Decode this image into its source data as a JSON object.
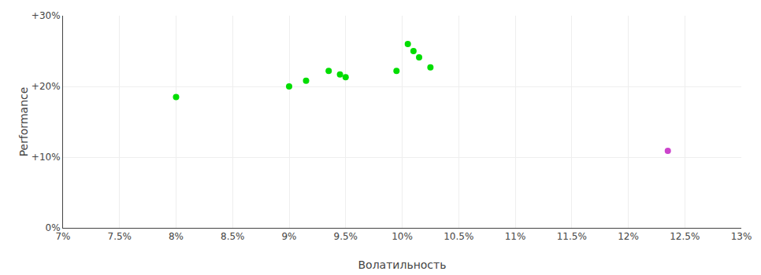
{
  "chart_data": {
    "type": "scatter",
    "x_label": "Волатильность",
    "y_label": "Performance",
    "xlim": [
      0.07,
      0.13
    ],
    "ylim": [
      0.0,
      0.3
    ],
    "xticks": [
      {
        "value": 0.07,
        "label": "7%"
      },
      {
        "value": 0.075,
        "label": "7.5%"
      },
      {
        "value": 0.08,
        "label": "8%"
      },
      {
        "value": 0.085,
        "label": "8.5%"
      },
      {
        "value": 0.09,
        "label": "9%"
      },
      {
        "value": 0.095,
        "label": "9.5%"
      },
      {
        "value": 0.1,
        "label": "10%"
      },
      {
        "value": 0.105,
        "label": "10.5%"
      },
      {
        "value": 0.11,
        "label": "11%"
      },
      {
        "value": 0.115,
        "label": "11.5%"
      },
      {
        "value": 0.12,
        "label": "12%"
      },
      {
        "value": 0.125,
        "label": "12.5%"
      },
      {
        "value": 0.13,
        "label": "13%"
      }
    ],
    "yticks": [
      {
        "value": 0.0,
        "label": "0%"
      },
      {
        "value": 0.1,
        "label": "+10%"
      },
      {
        "value": 0.2,
        "label": "+20%"
      },
      {
        "value": 0.3,
        "label": "+30%"
      }
    ],
    "grid": true,
    "series": [
      {
        "color": "#00dd00",
        "x": [
          0.08,
          0.09,
          0.0915,
          0.0935,
          0.0945,
          0.095,
          0.0995,
          0.1005,
          0.101,
          0.1015,
          0.1025
        ],
        "values": [
          0.185,
          0.2,
          0.208,
          0.222,
          0.217,
          0.213,
          0.222,
          0.26,
          0.25,
          0.241,
          0.227
        ]
      },
      {
        "color": "#cc44cc",
        "x": [
          0.1235
        ],
        "values": [
          0.109
        ]
      }
    ]
  }
}
